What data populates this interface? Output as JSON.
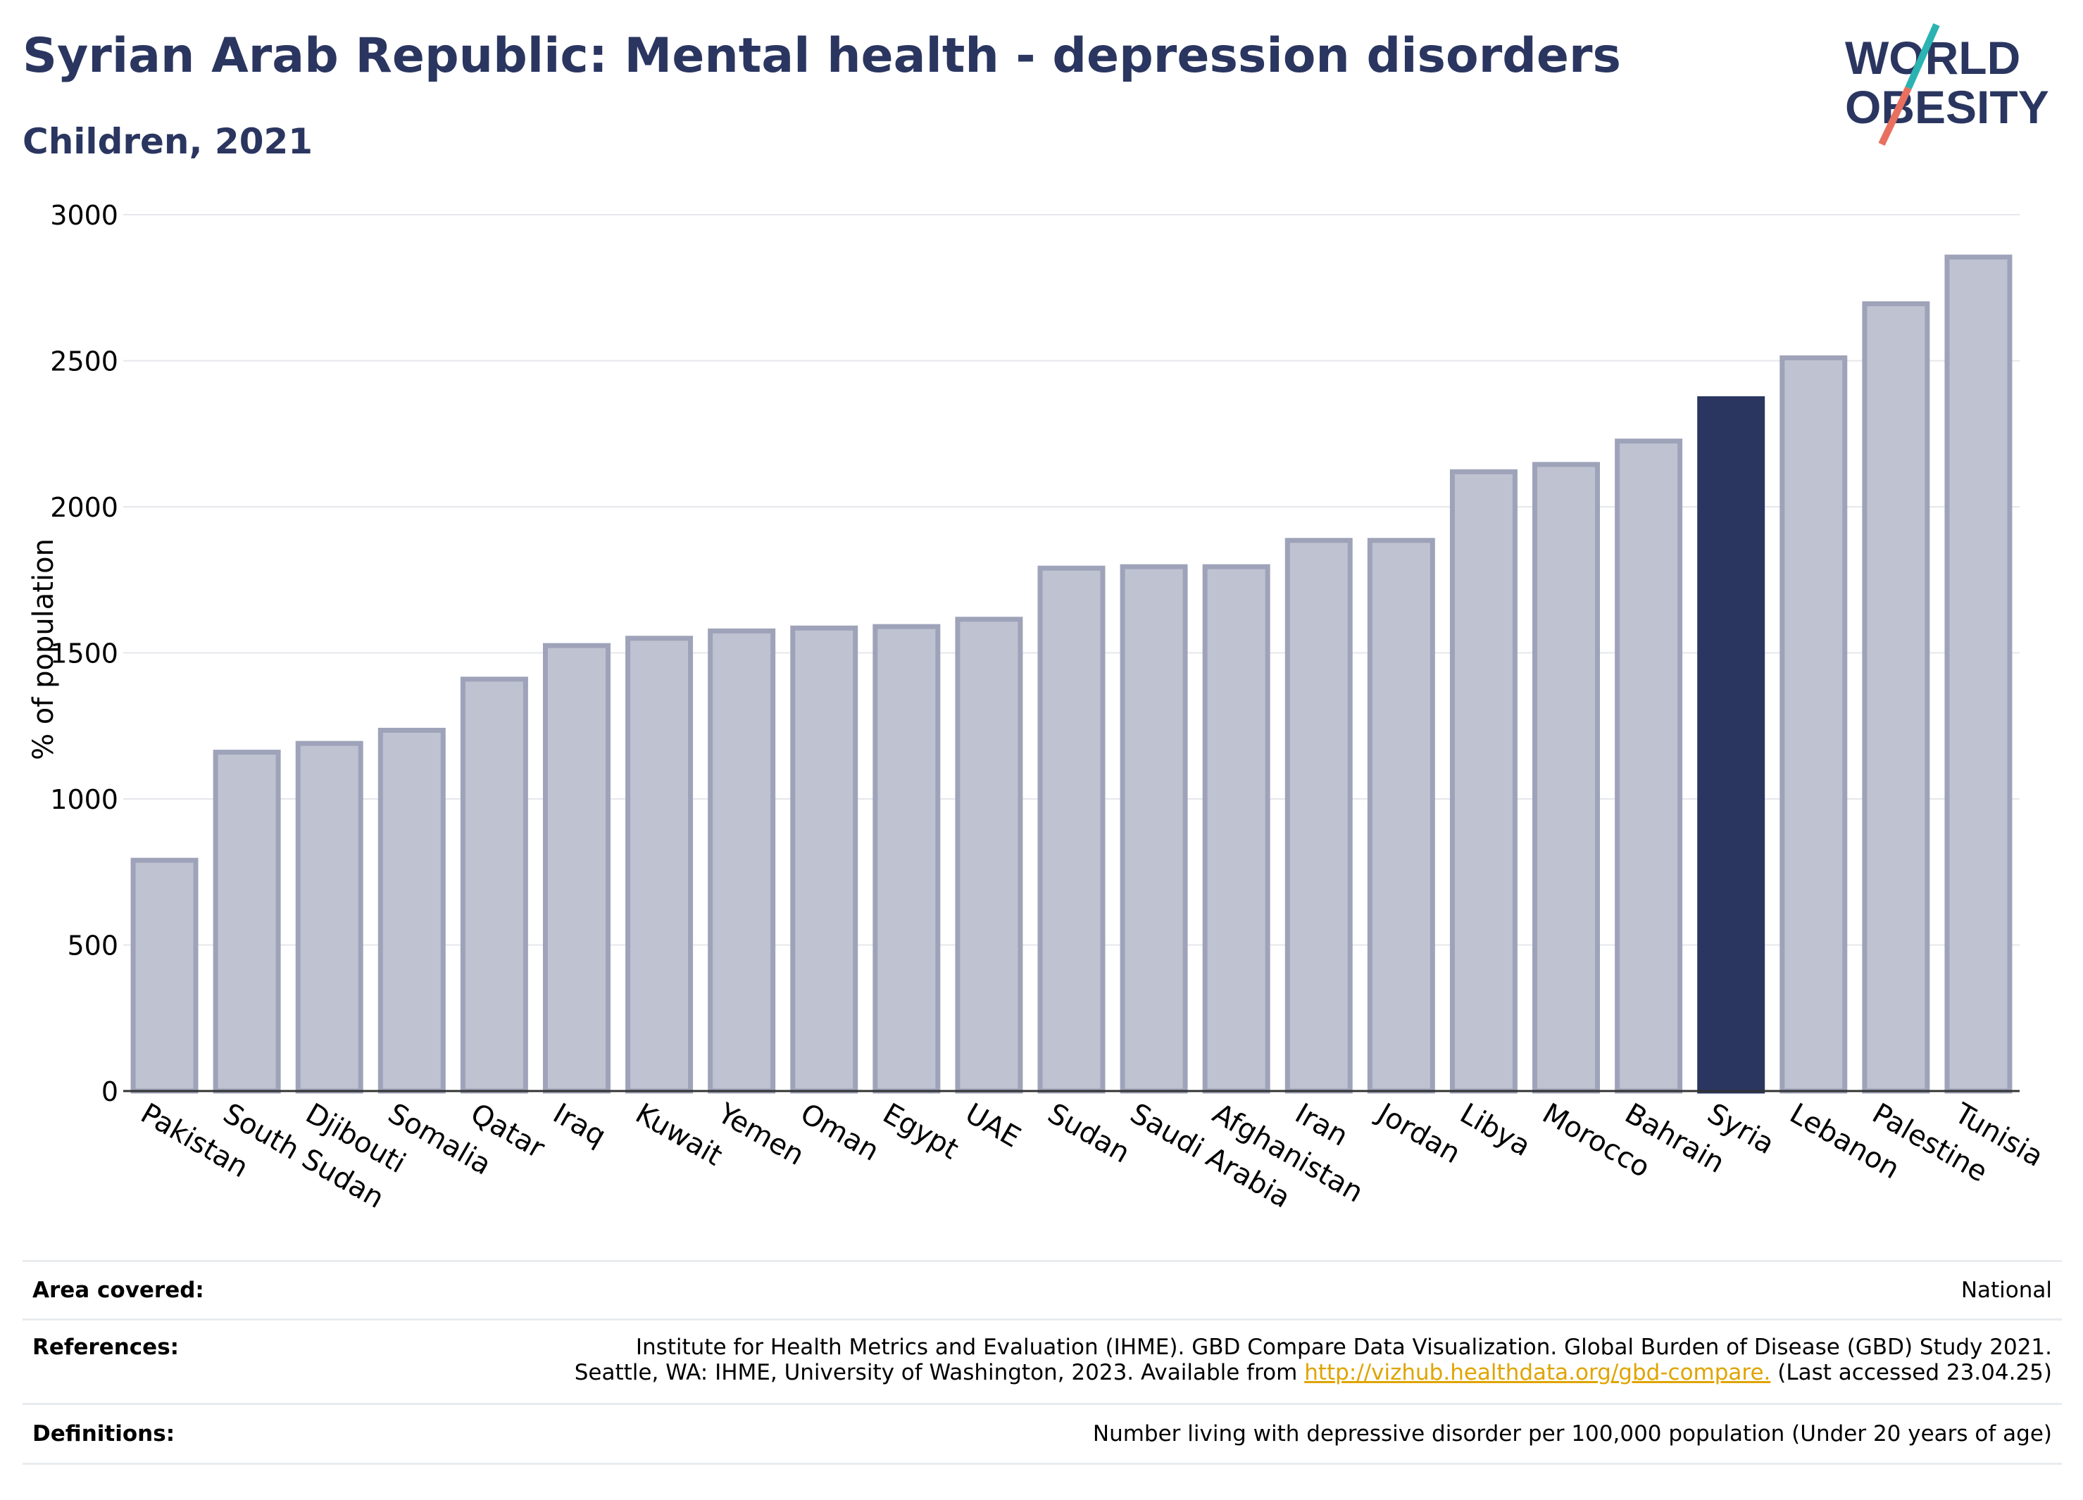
{
  "header": {
    "title": "Syrian Arab Republic: Mental health - depression disorders",
    "subtitle": "Children, 2021"
  },
  "logo": {
    "line1": "WORLD",
    "line2": "OBESITY",
    "icon": "world-obesity-logo"
  },
  "colors": {
    "highlight": "#2a3660",
    "bar_fill": "#bfc2d0",
    "bar_stroke": "#9ea3b9",
    "title": "#2a3660",
    "grid": "#e5e7eb",
    "link": "#e0a400"
  },
  "chart_data": {
    "type": "bar",
    "title": "Syrian Arab Republic: Mental health - depression disorders",
    "subtitle": "Children, 2021",
    "ylabel": "% of population",
    "xlabel": "",
    "ylim": [
      0,
      3000
    ],
    "yticks": [
      0,
      500,
      1000,
      1500,
      2000,
      2500,
      3000
    ],
    "grid": true,
    "highlight_category": "Syria",
    "categories": [
      "Pakistan",
      "South Sudan",
      "Djibouti",
      "Somalia",
      "Qatar",
      "Iraq",
      "Kuwait",
      "Yemen",
      "Oman",
      "Egypt",
      "UAE",
      "Sudan",
      "Saudi Arabia",
      "Afghanistan",
      "Iran",
      "Jordan",
      "Libya",
      "Morocco",
      "Bahrain",
      "Syria",
      "Lebanon",
      "Palestine",
      "Tunisia"
    ],
    "values": [
      790,
      1160,
      1190,
      1235,
      1410,
      1525,
      1550,
      1575,
      1585,
      1590,
      1615,
      1790,
      1795,
      1795,
      1885,
      1885,
      2120,
      2145,
      2225,
      2370,
      2510,
      2695,
      2855
    ]
  },
  "footer": {
    "rows": [
      {
        "label": "Area covered:",
        "lines": [
          "National"
        ]
      },
      {
        "label": "References:",
        "lines": [
          "Institute for Health Metrics and Evaluation (IHME). GBD Compare Data Visualization. Global Burden of Disease (GBD) Study 2021."
        ],
        "line2_prefix": "Seattle, WA: IHME, University of Washington, 2023. Available from ",
        "link_text": "http://vizhub.healthdata.org/gbd-compare.",
        "line2_suffix": " (Last accessed 23.04.25)"
      },
      {
        "label": "Definitions:",
        "lines": [
          "Number living with depressive disorder per 100,000 population (Under 20 years of age)"
        ]
      }
    ]
  }
}
